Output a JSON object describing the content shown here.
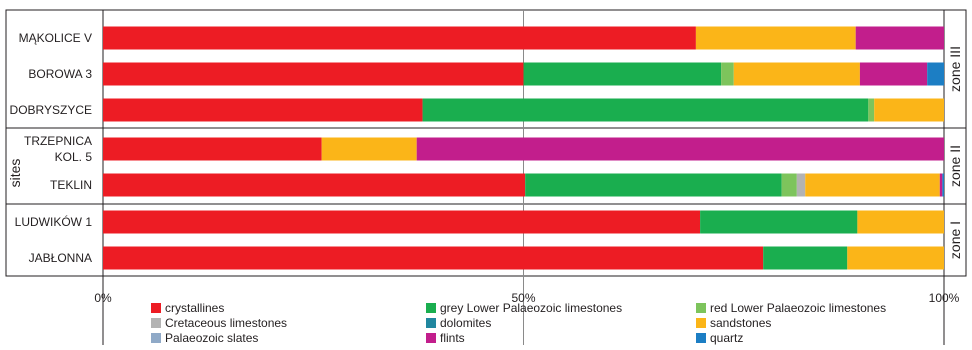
{
  "chart_data": {
    "type": "bar",
    "orientation": "horizontal",
    "stacked": true,
    "ylabel": "sites",
    "xlim": [
      0,
      100
    ],
    "x_ticks": [
      "0%",
      "50%",
      "100%"
    ],
    "categories": [
      "MĄKOLICE V",
      "BOROWA 3",
      "DOBRYSZYCE",
      "TRZEPNICA KOL. 5",
      "TEKLIN",
      "LUDWIKÓW 1",
      "JABŁONNA"
    ],
    "category_lines": [
      [
        "MĄKOLICE V"
      ],
      [
        "BOROWA 3"
      ],
      [
        "DOBRYSZYCE"
      ],
      [
        "TRZEPNICA",
        "KOL. 5"
      ],
      [
        "TEKLIN"
      ],
      [
        "LUDWIKÓW 1"
      ],
      [
        "JABŁONNA"
      ]
    ],
    "zones": [
      {
        "label": "zone III",
        "categories": [
          "MĄKOLICE V",
          "BOROWA 3",
          "DOBRYSZYCE"
        ]
      },
      {
        "label": "zone II",
        "categories": [
          "TRZEPNICA KOL. 5",
          "TEKLIN"
        ]
      },
      {
        "label": "zone I",
        "categories": [
          "LUDWIKÓW 1",
          "JABŁONNA"
        ]
      }
    ],
    "series": [
      {
        "name": "crystallines",
        "color": "#ed1c24",
        "values": [
          70.5,
          50,
          38,
          26,
          50.2,
          71,
          78.5
        ]
      },
      {
        "name": "grey Lower Palaeozoic limestones",
        "color": "#1aae4f",
        "values": [
          0,
          23.5,
          53,
          0,
          30.5,
          18.7,
          10
        ]
      },
      {
        "name": "red Lower Palaeozoic limestones",
        "color": "#7dc45c",
        "values": [
          0,
          1.5,
          0.7,
          0,
          1.8,
          0,
          0
        ]
      },
      {
        "name": "Cretaceous limestones",
        "color": "#b3b3b3",
        "values": [
          0,
          0,
          0,
          0,
          1,
          0,
          0
        ]
      },
      {
        "name": "dolomites",
        "color": "#21879f",
        "values": [
          0,
          0,
          0,
          0,
          0,
          0,
          0
        ]
      },
      {
        "name": "sandstones",
        "color": "#fbb518",
        "values": [
          19,
          15,
          8.3,
          11.3,
          16,
          10.3,
          11.5
        ]
      },
      {
        "name": "Palaeozoic slates",
        "color": "#8fa9c7",
        "values": [
          0,
          0,
          0,
          0,
          0,
          0,
          0
        ]
      },
      {
        "name": "flints",
        "color": "#c21e8c",
        "values": [
          10.5,
          8,
          0,
          62.7,
          0.3,
          0,
          0
        ]
      },
      {
        "name": "quartz",
        "color": "#1c7ec4",
        "values": [
          0,
          2,
          0,
          0,
          0.2,
          0,
          0
        ]
      }
    ],
    "legend_position": "bottom",
    "gridlines": [
      50
    ]
  }
}
